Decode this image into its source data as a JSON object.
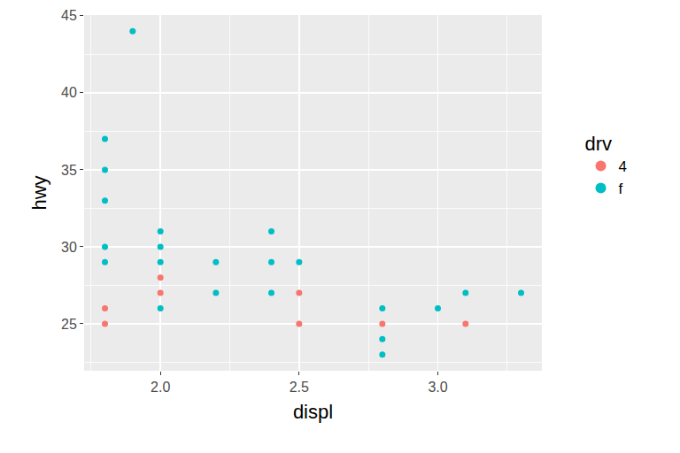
{
  "chart_data": {
    "type": "scatter",
    "x_label": "displ",
    "y_label": "hwy",
    "legend_title": "drv",
    "legend": "right",
    "grid": true,
    "xlim": [
      1.725,
      3.375
    ],
    "xticks": [
      {
        "value": 2,
        "label": "2.0"
      },
      {
        "value": 2.5,
        "label": "2.5"
      },
      {
        "value": 3,
        "label": "3.0"
      }
    ],
    "ylim": [
      21.95,
      45.05
    ],
    "yticks": [
      25,
      30,
      35,
      40,
      45
    ],
    "series": [
      {
        "name": "4",
        "color": "#F8766D",
        "marker": "circle",
        "x": [
          1.8,
          1.8,
          2.0,
          2.0,
          2.5,
          2.5,
          2.8,
          3.1
        ],
        "values": [
          26,
          25,
          28,
          27,
          27,
          25,
          25,
          25
        ]
      },
      {
        "name": "f",
        "color": "#00BFC4",
        "marker": "circle",
        "x": [
          1.8,
          1.8,
          1.8,
          1.8,
          1.8,
          1.9,
          2.0,
          2.0,
          2.0,
          2.0,
          2.2,
          2.2,
          2.4,
          2.4,
          2.4,
          2.5,
          2.8,
          2.8,
          2.8,
          3.0,
          3.1,
          3.3
        ],
        "values": [
          37,
          35,
          33,
          30,
          29,
          44,
          31,
          30,
          29,
          26,
          29,
          27,
          31,
          29,
          27,
          29,
          26,
          24,
          23,
          26,
          27,
          27
        ]
      }
    ]
  }
}
